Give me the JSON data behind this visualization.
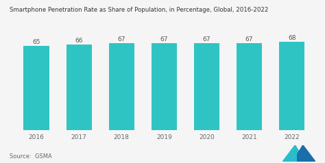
{
  "title": "Smartphone Penetration Rate as Share of Population, in Percentage, Global, 2016-2022",
  "categories": [
    "2016",
    "2017",
    "2018",
    "2019",
    "2020",
    "2021",
    "2022"
  ],
  "values": [
    65,
    66,
    67,
    67,
    67,
    67,
    68
  ],
  "bar_color": "#2EC4C4",
  "background_color": "#f5f5f5",
  "ylim": [
    0,
    75
  ],
  "source_text": "Source:  GSMA",
  "title_fontsize": 6.2,
  "label_fontsize": 6.5,
  "tick_fontsize": 6.5,
  "source_fontsize": 6.0,
  "logo_color_left": "#2abccc",
  "logo_color_right": "#1a6eaa"
}
